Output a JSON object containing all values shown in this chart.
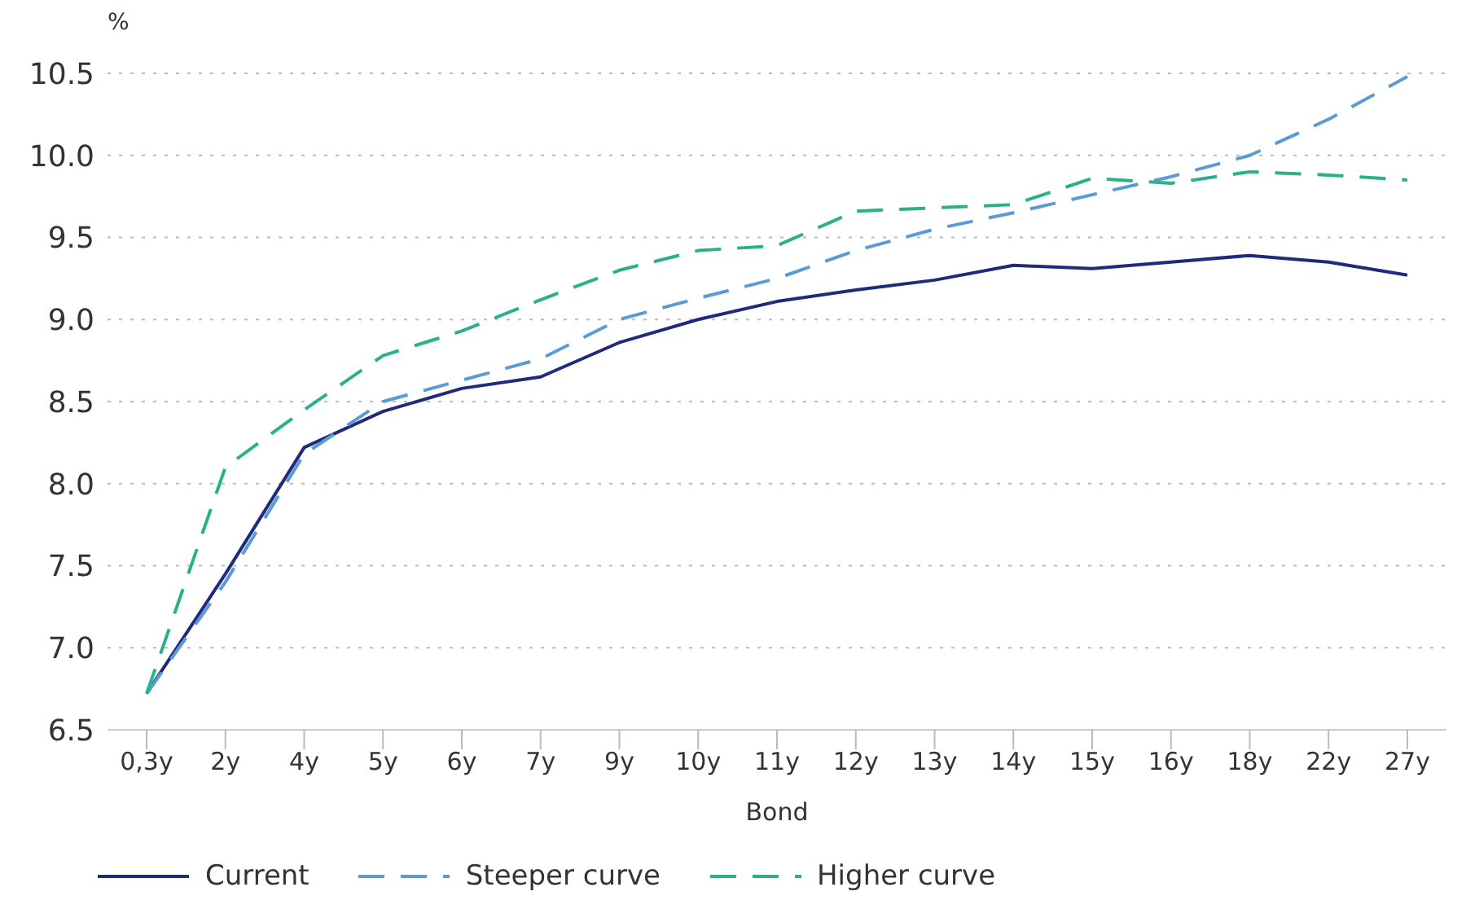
{
  "chart_data": {
    "type": "line",
    "ylabel": "%",
    "xlabel": "Bond",
    "categories": [
      "0,3y",
      "2y",
      "4y",
      "5y",
      "6y",
      "7y",
      "9y",
      "10y",
      "11y",
      "12y",
      "13y",
      "14y",
      "15y",
      "16y",
      "18y",
      "22y",
      "27y"
    ],
    "series": [
      {
        "name": "Current",
        "color": "#1f2a7a",
        "line_style": "solid",
        "values": [
          6.72,
          7.45,
          8.22,
          8.44,
          8.58,
          8.65,
          8.86,
          9.0,
          9.11,
          9.18,
          9.24,
          9.33,
          9.31,
          9.35,
          9.39,
          9.35,
          9.27
        ]
      },
      {
        "name": "Steeper curve",
        "color": "#5b9bd5",
        "line_style": "dashed",
        "values": [
          6.72,
          7.4,
          8.18,
          8.5,
          8.63,
          8.76,
          9.0,
          9.13,
          9.25,
          9.42,
          9.55,
          9.65,
          9.76,
          9.87,
          10.0,
          10.22,
          10.48
        ]
      },
      {
        "name": "Higher curve",
        "color": "#2ab08a",
        "line_style": "dashed",
        "values": [
          6.72,
          8.1,
          8.45,
          8.78,
          8.93,
          9.12,
          9.3,
          9.42,
          9.45,
          9.66,
          9.68,
          9.7,
          9.86,
          9.83,
          9.9,
          9.88,
          9.85
        ]
      }
    ],
    "ylim": [
      6.5,
      10.5
    ],
    "yticks": [
      {
        "value": 6.5,
        "label": "6.5"
      },
      {
        "value": 7,
        "label": "7.0"
      },
      {
        "value": 7.5,
        "label": "7.5"
      },
      {
        "value": 8,
        "label": "8.0"
      },
      {
        "value": 8.5,
        "label": "8.5"
      },
      {
        "value": 9,
        "label": "9.0"
      },
      {
        "value": 9.5,
        "label": "9.5"
      },
      {
        "value": 10,
        "label": "10.0"
      },
      {
        "value": 10.5,
        "label": "10.5"
      }
    ],
    "grid": "y",
    "legend": "bottom left",
    "marker": "none"
  }
}
